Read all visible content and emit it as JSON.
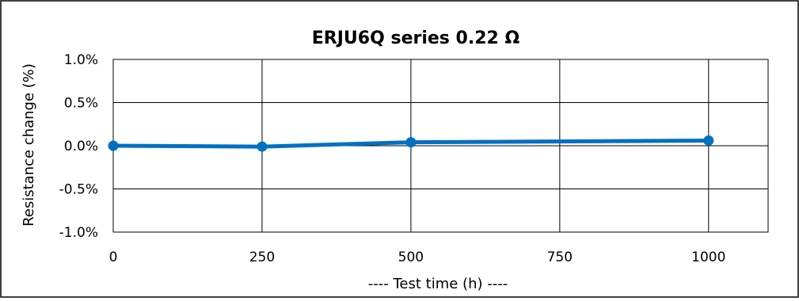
{
  "chart_data": {
    "type": "line",
    "title": "ERJU6Q series  0.22 Ω",
    "xlabel": "----  Test time (h)  ----",
    "ylabel": "Resistance change (%)",
    "x": [
      0,
      250,
      500,
      1000
    ],
    "series": [
      {
        "values": [
          0.0,
          -0.01,
          0.04,
          0.06
        ]
      }
    ],
    "xlim": [
      0,
      1100
    ],
    "ylim": [
      -1.0,
      1.0
    ],
    "xticks": [
      "0",
      "250",
      "500",
      "750",
      "1000"
    ],
    "yticks": [
      "1.0%",
      "0.5%",
      "0.0%",
      "-0.5%",
      "-1.0%"
    ],
    "grid": true,
    "line_color": "#0070c0"
  }
}
